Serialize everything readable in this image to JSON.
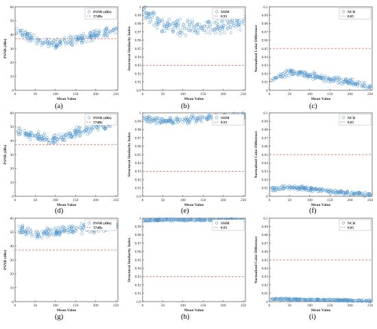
{
  "colors": {
    "series": "#4f94cd",
    "threshold": "#e05a5a",
    "axis": "#262626"
  },
  "chart_data": [
    {
      "id": "a",
      "type": "scatter",
      "metric": "psnr",
      "panel_label": "(a)",
      "xlabel": "Mean Value",
      "ylabel": "PSNR (dBs)",
      "xlim": [
        0,
        255
      ],
      "ylim": [
        0,
        60
      ],
      "xticks": [
        "0",
        "50",
        "100",
        "150",
        "200",
        "250"
      ],
      "yticks": [
        "0",
        "10",
        "20",
        "30",
        "40",
        "50",
        "60"
      ],
      "legend": {
        "position": "top-right",
        "items": [
          "PSNR (dBs)",
          "37dBs"
        ]
      },
      "threshold": 37,
      "series": [
        {
          "name": "PSNR (dBs)",
          "trend": [
            [
              0,
              44
            ],
            [
              60,
              35
            ],
            [
              100,
              33
            ],
            [
              150,
              36
            ],
            [
              200,
              40
            ],
            [
              255,
              44
            ]
          ],
          "spread": 4
        }
      ]
    },
    {
      "id": "b",
      "type": "scatter",
      "metric": "ssim",
      "panel_label": "(b)",
      "xlabel": "Mean Value",
      "ylabel": "Structural Similarity Index",
      "xlim": [
        0,
        255
      ],
      "ylim": [
        0.9,
        1.0
      ],
      "xticks": [
        "0",
        "50",
        "100",
        "150",
        "200",
        "250"
      ],
      "yticks": [
        "0.9",
        "0.91",
        "0.92",
        "0.93",
        "0.94",
        "0.95",
        "0.96",
        "0.97",
        "0.98",
        "0.99",
        "1"
      ],
      "legend": {
        "position": "top-right",
        "items": [
          "SSIM",
          "0.93"
        ]
      },
      "threshold": 0.93,
      "series": [
        {
          "name": "SSIM",
          "trend": [
            [
              0,
              0.995
            ],
            [
              50,
              0.978
            ],
            [
              100,
              0.975
            ],
            [
              150,
              0.976
            ],
            [
              200,
              0.975
            ],
            [
              255,
              0.985
            ]
          ],
          "spread": 0.011
        }
      ]
    },
    {
      "id": "c",
      "type": "scatter",
      "metric": "ncd",
      "panel_label": "(c)",
      "xlabel": "Mean Value",
      "ylabel": "Normalized Color Difference",
      "xlim": [
        0,
        255
      ],
      "ylim": [
        0,
        0.1
      ],
      "xticks": [
        "0",
        "50",
        "100",
        "150",
        "200",
        "250"
      ],
      "yticks": [
        "0",
        "0.01",
        "0.02",
        "0.03",
        "0.04",
        "0.05",
        "0.06",
        "0.07",
        "0.08",
        "0.09",
        "0.1"
      ],
      "legend": {
        "position": "top-right",
        "items": [
          "NCD",
          "0.05"
        ]
      },
      "threshold": 0.05,
      "series": [
        {
          "name": "NCD",
          "trend": [
            [
              0,
              0.012
            ],
            [
              50,
              0.022
            ],
            [
              100,
              0.018
            ],
            [
              150,
              0.013
            ],
            [
              200,
              0.01
            ],
            [
              255,
              0.004
            ]
          ],
          "spread": 0.005
        }
      ]
    },
    {
      "id": "d",
      "type": "scatter",
      "metric": "psnr",
      "panel_label": "(d)",
      "xlabel": "Mean Value",
      "ylabel": "PSNR (dBs)",
      "xlim": [
        0,
        255
      ],
      "ylim": [
        0,
        60
      ],
      "xticks": [
        "0",
        "50",
        "100",
        "150",
        "200",
        "250"
      ],
      "yticks": [
        "0",
        "10",
        "20",
        "30",
        "40",
        "50",
        "60"
      ],
      "legend": {
        "position": "top-right",
        "items": [
          "PSNR (dBs)",
          "37dBs"
        ]
      },
      "threshold": 37,
      "series": [
        {
          "name": "PSNR (dBs)",
          "trend": [
            [
              0,
              47
            ],
            [
              50,
              43
            ],
            [
              100,
              41
            ],
            [
              150,
              46
            ],
            [
              200,
              50
            ],
            [
              255,
              53
            ]
          ],
          "spread": 4
        }
      ]
    },
    {
      "id": "e",
      "type": "scatter",
      "metric": "ssim",
      "panel_label": "(e)",
      "xlabel": "Mean Value",
      "ylabel": "Structural Similarity Index",
      "xlim": [
        0,
        255
      ],
      "ylim": [
        0.9,
        1.0
      ],
      "xticks": [
        "0",
        "50",
        "100",
        "150",
        "200",
        "250"
      ],
      "yticks": [
        "0.9",
        "0.91",
        "0.92",
        "0.93",
        "0.94",
        "0.95",
        "0.96",
        "0.97",
        "0.98",
        "0.99",
        "1"
      ],
      "legend": {
        "position": "top-right",
        "items": [
          "SSIM",
          "0.93"
        ]
      },
      "threshold": 0.93,
      "series": [
        {
          "name": "SSIM",
          "trend": [
            [
              0,
              0.994
            ],
            [
              50,
              0.99
            ],
            [
              100,
              0.991
            ],
            [
              150,
              0.994
            ],
            [
              200,
              0.995
            ],
            [
              255,
              0.997
            ]
          ],
          "spread": 0.005
        }
      ]
    },
    {
      "id": "f",
      "type": "scatter",
      "metric": "ncd",
      "panel_label": "(f)",
      "xlabel": "Mean Value",
      "ylabel": "Normalized Color Difference",
      "xlim": [
        0,
        255
      ],
      "ylim": [
        0,
        0.1
      ],
      "xticks": [
        "0",
        "50",
        "100",
        "150",
        "200",
        "250"
      ],
      "yticks": [
        "0",
        "0.01",
        "0.02",
        "0.03",
        "0.04",
        "0.05",
        "0.06",
        "0.07",
        "0.08",
        "0.09",
        "0.1"
      ],
      "legend": {
        "position": "top-right",
        "items": [
          "NCD",
          "0.05"
        ]
      },
      "threshold": 0.05,
      "series": [
        {
          "name": "NCD",
          "trend": [
            [
              0,
              0.008
            ],
            [
              50,
              0.011
            ],
            [
              100,
              0.009
            ],
            [
              150,
              0.006
            ],
            [
              200,
              0.004
            ],
            [
              255,
              0.002
            ]
          ],
          "spread": 0.003
        }
      ]
    },
    {
      "id": "g",
      "type": "scatter",
      "metric": "psnr",
      "panel_label": "(g)",
      "xlabel": "Mean Value",
      "ylabel": "PSNR (dBs)",
      "xlim": [
        0,
        255
      ],
      "ylim": [
        0,
        60
      ],
      "xticks": [
        "0",
        "50",
        "100",
        "150",
        "200",
        "250"
      ],
      "yticks": [
        "0",
        "10",
        "20",
        "30",
        "40",
        "50",
        "60"
      ],
      "legend": {
        "position": "top-right",
        "items": [
          "PSNR (dBs)",
          "37dBs"
        ]
      },
      "threshold": 37,
      "series": [
        {
          "name": "PSNR (dBs)",
          "trend": [
            [
              0,
              53
            ],
            [
              50,
              48
            ],
            [
              100,
              50
            ],
            [
              150,
              52
            ],
            [
              200,
              53
            ],
            [
              255,
              55
            ]
          ],
          "spread": 4
        }
      ]
    },
    {
      "id": "h",
      "type": "scatter",
      "metric": "ssim",
      "panel_label": "(h)",
      "xlabel": "Mean Value",
      "ylabel": "Structural Similarity Index",
      "xlim": [
        0,
        255
      ],
      "ylim": [
        0.9,
        1.0
      ],
      "xticks": [
        "0",
        "50",
        "100",
        "150",
        "200",
        "250"
      ],
      "yticks": [
        "0.9",
        "0.91",
        "0.92",
        "0.93",
        "0.94",
        "0.95",
        "0.96",
        "0.97",
        "0.98",
        "0.99",
        "1"
      ],
      "legend": {
        "position": "top-right",
        "items": [
          "SSIM",
          "0.93"
        ]
      },
      "threshold": 0.93,
      "series": [
        {
          "name": "SSIM",
          "trend": [
            [
              0,
              0.997
            ],
            [
              50,
              0.998
            ],
            [
              100,
              0.998
            ],
            [
              150,
              0.998
            ],
            [
              200,
              0.998
            ],
            [
              255,
              0.998
            ]
          ],
          "spread": 0.0013
        }
      ]
    },
    {
      "id": "i",
      "type": "scatter",
      "metric": "ncd",
      "panel_label": "(i)",
      "xlabel": "Mean Value",
      "ylabel": "Normalized Color Difference",
      "xlim": [
        0,
        255
      ],
      "ylim": [
        0,
        0.1
      ],
      "xticks": [
        "0",
        "50",
        "100",
        "150",
        "200",
        "250"
      ],
      "yticks": [
        "0",
        "0.01",
        "0.02",
        "0.03",
        "0.04",
        "0.05",
        "0.06",
        "0.07",
        "0.08",
        "0.09",
        "0.1"
      ],
      "legend": {
        "position": "top-right",
        "items": [
          "NCD",
          "0.05"
        ]
      },
      "threshold": 0.05,
      "series": [
        {
          "name": "NCD",
          "trend": [
            [
              0,
              0.003
            ],
            [
              50,
              0.003
            ],
            [
              100,
              0.002
            ],
            [
              150,
              0.002
            ],
            [
              200,
              0.0015
            ],
            [
              255,
              0.001
            ]
          ],
          "spread": 0.0012
        }
      ]
    }
  ]
}
